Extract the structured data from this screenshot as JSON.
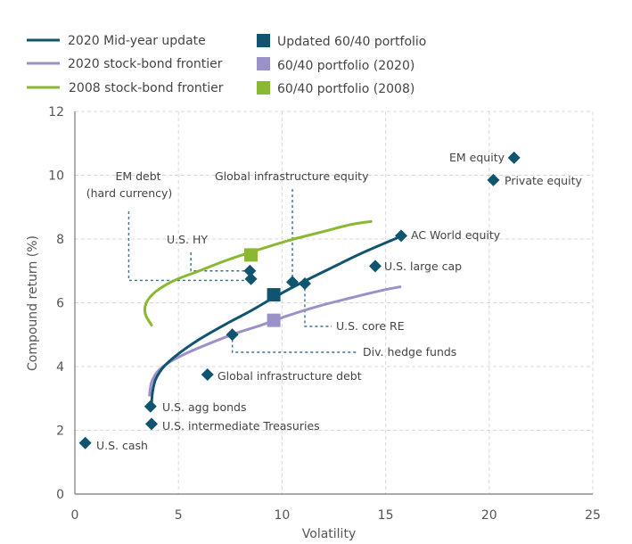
{
  "chart_data": {
    "type": "scatter",
    "title": "",
    "xlabel": "Volatility",
    "ylabel": "Compound return (%)",
    "xlim": [
      0,
      25
    ],
    "ylim": [
      0,
      12
    ],
    "x_ticks": [
      "0",
      "5",
      "10",
      "15",
      "20",
      "25"
    ],
    "y_ticks": [
      "0",
      "2",
      "4",
      "6",
      "8",
      "10",
      "12"
    ],
    "grid": true,
    "legend_position": "top-left",
    "legend": [
      {
        "label": "2020 Mid-year update",
        "kind": "line",
        "color": "#10546f"
      },
      {
        "label": "2020 stock-bond frontier",
        "kind": "line",
        "color": "#9a91c8"
      },
      {
        "label": "2008 stock-bond frontier",
        "kind": "line",
        "color": "#8ab833"
      },
      {
        "label": "Updated 60/40 portfolio",
        "kind": "square",
        "color": "#10546f"
      },
      {
        "label": "60/40 portfolio (2020)",
        "kind": "square",
        "color": "#9a91c8"
      },
      {
        "label": "60/40 portfolio (2008)",
        "kind": "square",
        "color": "#8ab833"
      }
    ],
    "series": [
      {
        "name": "2020 Mid-year update",
        "kind": "line",
        "color": "#10546f",
        "x": [
          3.7,
          3.75,
          3.9,
          4.3,
          5.0,
          6.0,
          7.2,
          8.5,
          9.7,
          11.0,
          12.4,
          14.0,
          15.8
        ],
        "y": [
          2.8,
          3.2,
          3.6,
          4.0,
          4.4,
          4.85,
          5.3,
          5.75,
          6.2,
          6.65,
          7.1,
          7.6,
          8.1
        ]
      },
      {
        "name": "2020 stock-bond frontier",
        "kind": "line",
        "color": "#9a91c8",
        "x": [
          3.6,
          3.7,
          4.0,
          4.6,
          5.5,
          6.6,
          7.8,
          9.0,
          10.3,
          11.8,
          13.3,
          14.9,
          15.7
        ],
        "y": [
          3.1,
          3.5,
          3.85,
          4.15,
          4.45,
          4.75,
          5.05,
          5.3,
          5.6,
          5.9,
          6.15,
          6.4,
          6.5
        ]
      },
      {
        "name": "2008 stock-bond frontier",
        "kind": "line",
        "color": "#8ab833",
        "x": [
          3.7,
          3.4,
          3.45,
          3.9,
          4.8,
          6.0,
          7.4,
          8.8,
          10.3,
          11.8,
          13.3,
          14.3
        ],
        "y": [
          5.3,
          5.65,
          6.0,
          6.35,
          6.7,
          7.0,
          7.35,
          7.65,
          7.95,
          8.2,
          8.45,
          8.55
        ]
      }
    ],
    "portfolios": [
      {
        "label": "Updated 60/40 portfolio",
        "x": 9.6,
        "y": 6.25,
        "color": "#10546f"
      },
      {
        "label": "60/40 portfolio (2020)",
        "x": 9.6,
        "y": 5.45,
        "color": "#9a91c8"
      },
      {
        "label": "60/40 portfolio (2008)",
        "x": 8.5,
        "y": 7.5,
        "color": "#8ab833"
      }
    ],
    "points": [
      {
        "label": "U.S. cash",
        "x": 0.5,
        "y": 1.6
      },
      {
        "label": "U.S. intermediate Treasuries",
        "x": 3.7,
        "y": 2.2
      },
      {
        "label": "U.S. agg bonds",
        "x": 3.65,
        "y": 2.75
      },
      {
        "label": "Global infrastructure debt",
        "x": 6.4,
        "y": 3.75
      },
      {
        "label": "Div. hedge funds",
        "x": 7.6,
        "y": 5.0
      },
      {
        "label": "U.S. HY",
        "x": 8.45,
        "y": 7.0
      },
      {
        "label": "EM debt (hard currency)",
        "x": 8.5,
        "y": 6.75
      },
      {
        "label": "Global infrastructure equity",
        "x": 10.5,
        "y": 6.65
      },
      {
        "label": "U.S. core RE",
        "x": 11.1,
        "y": 6.6
      },
      {
        "label": "U.S. large cap",
        "x": 14.5,
        "y": 7.15
      },
      {
        "label": "AC World equity",
        "x": 15.75,
        "y": 8.1
      },
      {
        "label": "Private equity",
        "x": 20.2,
        "y": 9.85
      },
      {
        "label": "EM equity",
        "x": 21.2,
        "y": 10.55
      }
    ],
    "annotations": {
      "em_debt_line1": "EM debt",
      "em_debt_line2": "(hard currency)",
      "us_hy": "U.S. HY",
      "global_infra_equity": "Global infrastructure equity",
      "us_core_re": "U.S. core RE",
      "div_hedge_funds": "Div. hedge funds",
      "ac_world_equity": "AC World equity",
      "us_large_cap": "U.S. large cap",
      "private_equity": "Private equity",
      "em_equity": "EM equity",
      "global_infra_debt": "Global infrastructure debt",
      "us_agg_bonds": "U.S. agg bonds",
      "us_int_treasuries": "U.S. intermediate Treasuries",
      "us_cash": "U.S. cash"
    },
    "marker_color": "#10546f"
  }
}
